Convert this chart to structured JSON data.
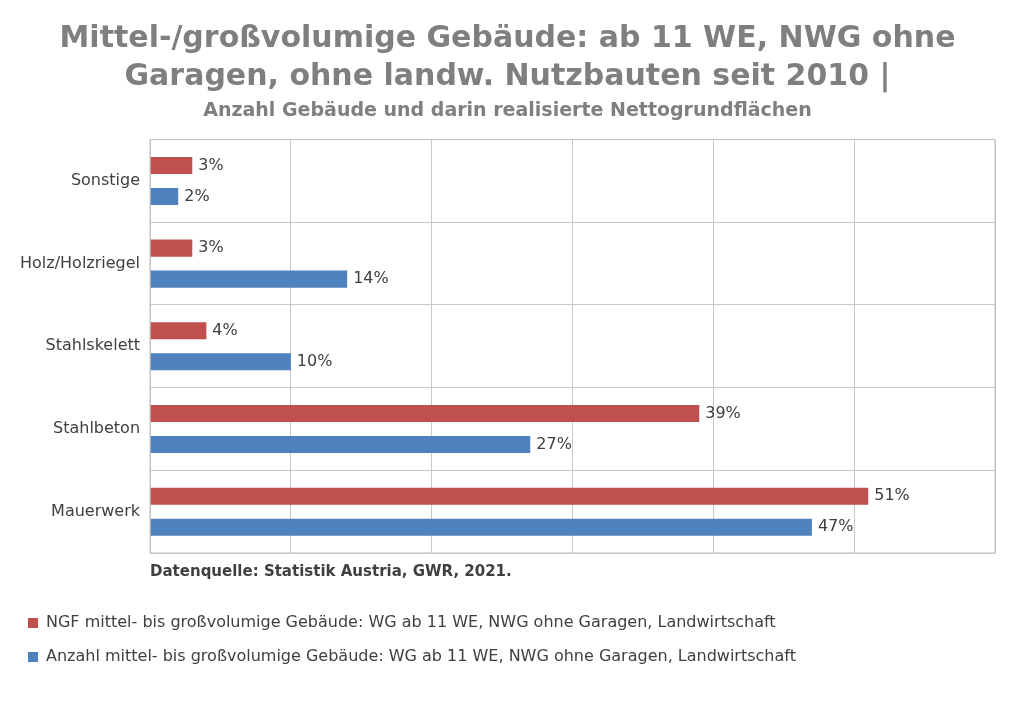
{
  "chart_data": {
    "type": "bar",
    "orientation": "horizontal",
    "title": "Mittel-/großvolumige Gebäude: ab 11 WE, NWG ohne Garagen, ohne landw. Nutzbauten seit 2010 |",
    "subtitle": "Anzahl Gebäude und darin realisierte Nettogrundflächen",
    "categories": [
      "Sonstige",
      "Holz/Holzriegel",
      "Stahlskelett",
      "Stahlbeton",
      "Mauerwerk"
    ],
    "series": [
      {
        "name": "NGF mittel- bis großvolumige Gebäude: WG ab 11 WE, NWG ohne Garagen, Landwirtschaft",
        "color": "#c0504d",
        "values": [
          3,
          3,
          4,
          39,
          51
        ],
        "value_labels": [
          "3%",
          "3%",
          "4%",
          "39%",
          "51%"
        ]
      },
      {
        "name": "Anzahl mittel- bis großvolumige Gebäude: WG ab 11 WE, NWG ohne Garagen, Landwirtschaft",
        "color": "#4f81bd",
        "values": [
          2,
          14,
          10,
          27,
          47
        ],
        "value_labels": [
          "2%",
          "14%",
          "10%",
          "27%",
          "47%"
        ]
      }
    ],
    "xlim": [
      0,
      60
    ],
    "xticks": [
      {
        "value": 0,
        "label": null
      },
      {
        "value": 10,
        "label": null
      },
      {
        "value": 20,
        "label": null
      },
      {
        "value": 30,
        "label": null
      },
      {
        "value": 40,
        "label": null
      },
      {
        "value": 50,
        "label": null
      },
      {
        "value": 60,
        "label": null
      }
    ],
    "tick_labels": "y",
    "grid": true,
    "legend": "bottom",
    "annotations": [
      "Datenquelle: Statistik Austria, GWR, 2021."
    ]
  }
}
